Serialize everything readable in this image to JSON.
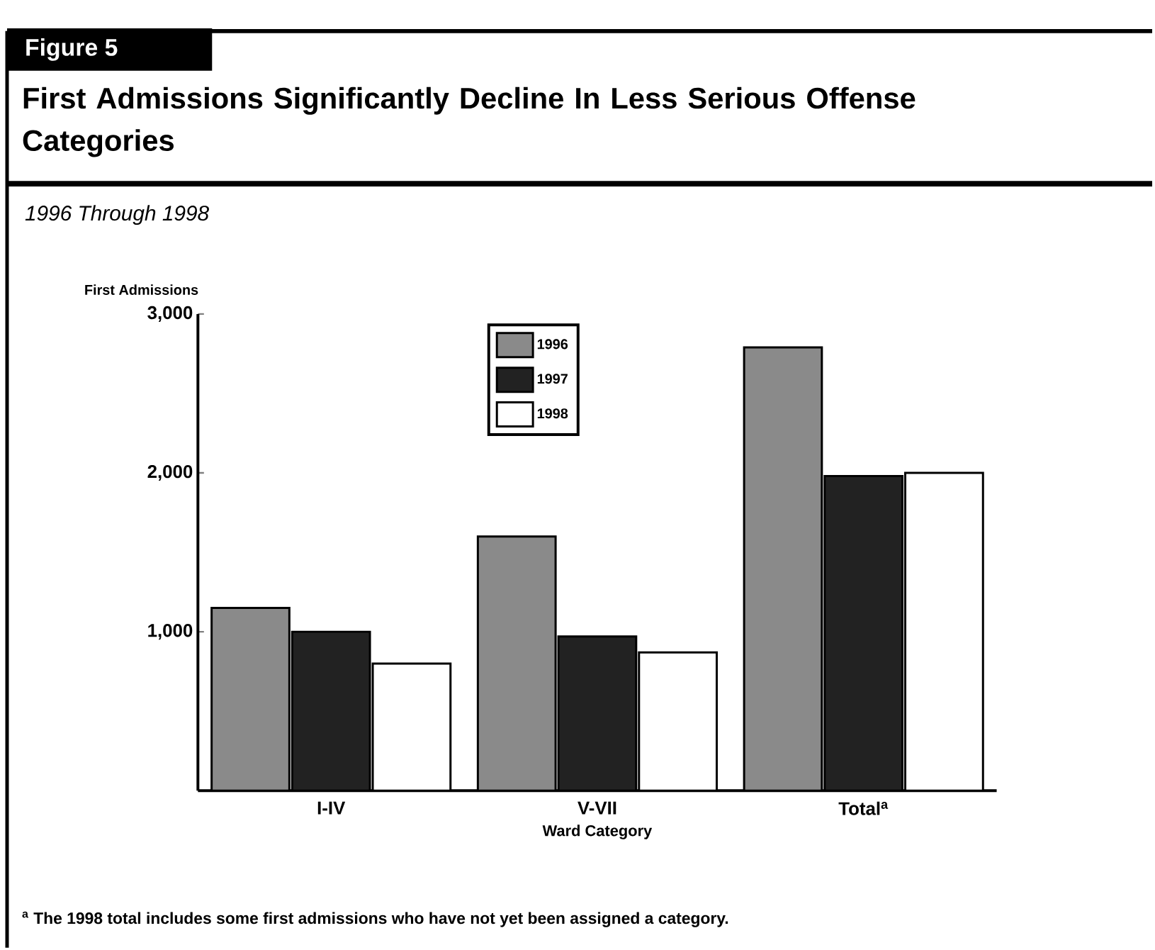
{
  "chart_data": {
    "type": "bar",
    "title": "First Admissions Significantly Decline In Less Serious Offense Categories",
    "subtitle": "1996 Through 1998",
    "ylabel": "First Admissions",
    "xlabel": "Ward Category",
    "categories": [
      "I-IV",
      "V-VII",
      "Total$^{a}$"
    ],
    "series": [
      {
        "name": "1996",
        "color": "#8a8a8a",
        "values": [
          1150,
          1600,
          2790
        ]
      },
      {
        "name": "1997",
        "color": "#222222",
        "values": [
          1000,
          970,
          1980
        ]
      },
      {
        "name": "1998",
        "color": "#ffffff",
        "values": [
          800,
          870,
          2000
        ]
      }
    ],
    "ylim": [
      0,
      3000
    ],
    "yticks": [
      {
        "value": 1000,
        "label": "1,000"
      },
      {
        "value": 2000,
        "label": "2,000"
      },
      {
        "value": 3000,
        "label": "3,000"
      }
    ],
    "legend": "top",
    "annotations": [
      "Figure 5",
      "$^{a}$ The 1998 total includes some first admissions who have not yet been assigned a category."
    ]
  }
}
